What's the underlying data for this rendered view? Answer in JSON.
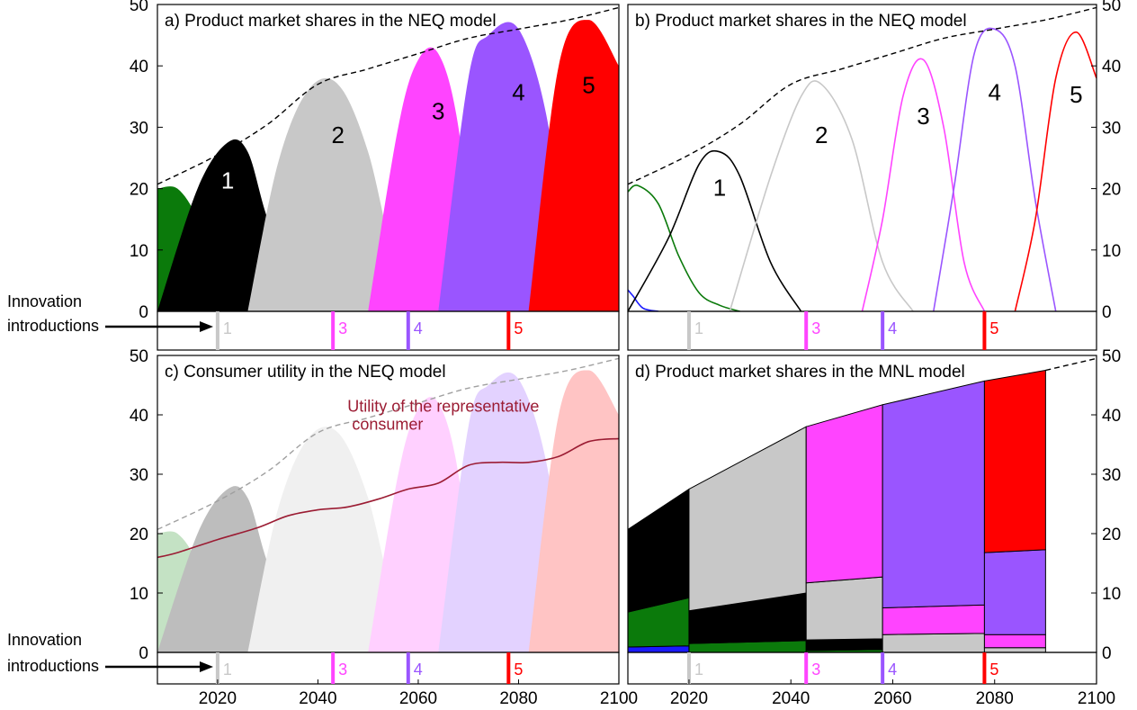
{
  "figure": {
    "innovation_label_line1": "Innovation",
    "innovation_label_line2": "introductions",
    "colors": {
      "blue": "#1a1aff",
      "green": "#0b7a0b",
      "black": "#000000",
      "grey": "#c8c8c8",
      "magenta": "#ff44ff",
      "purple": "#9a55ff",
      "red": "#ff0000",
      "utility": "#9b1c33"
    }
  },
  "chart_data": [
    {
      "panel": "a",
      "type": "area",
      "title": "a) Product market shares in the NEQ model",
      "x_range": [
        2008,
        2100
      ],
      "y_range": [
        0,
        50
      ],
      "y_ticks": [
        "0",
        "10",
        "20",
        "30",
        "40",
        "50"
      ],
      "x_ticks": [],
      "total_line": {
        "style": "dashed",
        "x": [
          2008,
          2020,
          2030,
          2040,
          2050,
          2060,
          2070,
          2080,
          2090,
          2100
        ],
        "y": [
          20.7,
          25.5,
          30.5,
          37.0,
          39.5,
          42.0,
          44.5,
          46.0,
          47.5,
          49.5
        ]
      },
      "series": [
        {
          "label": "",
          "color": "blue",
          "x": [
            2008,
            2010,
            2014
          ],
          "y": [
            3.5,
            1.0,
            0.0
          ]
        },
        {
          "label": "",
          "color": "green",
          "x": [
            2008,
            2012,
            2016,
            2020,
            2024,
            2028
          ],
          "y": [
            20.0,
            20.0,
            15.0,
            5.0,
            1.0,
            0.0
          ]
        },
        {
          "label": "1",
          "color": "black",
          "x": [
            2008,
            2016,
            2022,
            2026,
            2030,
            2036,
            2040
          ],
          "y": [
            0.0,
            20.0,
            27.5,
            26.0,
            15.0,
            3.0,
            0.0
          ]
        },
        {
          "label": "2",
          "color": "grey",
          "x": [
            2026,
            2032,
            2038,
            2044,
            2050,
            2056,
            2062
          ],
          "y": [
            0.0,
            24.0,
            36.0,
            37.0,
            26.0,
            6.0,
            0.0
          ]
        },
        {
          "label": "3",
          "color": "magenta",
          "x": [
            2050,
            2056,
            2060,
            2064,
            2068,
            2072
          ],
          "y": [
            0.0,
            30.0,
            41.0,
            42.0,
            30.0,
            0.0
          ]
        },
        {
          "label": "4",
          "color": "purple",
          "x": [
            2064,
            2070,
            2074,
            2080,
            2086,
            2090
          ],
          "y": [
            0.0,
            38.0,
            45.0,
            46.0,
            30.0,
            0.0
          ]
        },
        {
          "label": "5",
          "color": "red",
          "x": [
            2082,
            2088,
            2094,
            2100
          ],
          "y": [
            0.0,
            40.0,
            47.5,
            40.0
          ]
        }
      ],
      "innovations": [
        {
          "label": "1",
          "x": 2020,
          "color": "grey"
        },
        {
          "label": "3",
          "x": 2043,
          "color": "magenta"
        },
        {
          "label": "4",
          "x": 2058,
          "color": "purple"
        },
        {
          "label": "5",
          "x": 2078,
          "color": "red"
        }
      ]
    },
    {
      "panel": "b",
      "type": "line",
      "title": "b) Product market shares in the NEQ model",
      "x_range": [
        2008,
        2100
      ],
      "y_range": [
        0,
        50
      ],
      "y_ticks": [
        "0",
        "10",
        "20",
        "30",
        "40",
        "50"
      ],
      "x_ticks": [],
      "total_line": {
        "style": "dashed",
        "x": [
          2008,
          2020,
          2030,
          2040,
          2050,
          2060,
          2070,
          2080,
          2090,
          2100
        ],
        "y": [
          20.7,
          25.5,
          30.5,
          37.0,
          39.5,
          42.0,
          44.5,
          46.0,
          47.5,
          49.5
        ]
      },
      "series": [
        {
          "label": "",
          "color": "blue",
          "x": [
            2008,
            2009,
            2011,
            2014
          ],
          "y": [
            3.5,
            2.5,
            0.5,
            0.0
          ]
        },
        {
          "label": "",
          "color": "green",
          "x": [
            2008,
            2010,
            2014,
            2018,
            2022,
            2026,
            2030
          ],
          "y": [
            19.5,
            20.5,
            17.5,
            9.0,
            3.0,
            1.0,
            0.0
          ]
        },
        {
          "label": "1",
          "color": "black",
          "x": [
            2008,
            2016,
            2022,
            2026,
            2030,
            2036,
            2042
          ],
          "y": [
            0.0,
            12.0,
            24.0,
            26.0,
            22.0,
            8.0,
            0.0
          ]
        },
        {
          "label": "2",
          "color": "grey",
          "x": [
            2028,
            2036,
            2042,
            2046,
            2052,
            2058,
            2064
          ],
          "y": [
            0.0,
            22.0,
            35.0,
            37.0,
            28.0,
            8.0,
            0.0
          ]
        },
        {
          "label": "3",
          "color": "magenta",
          "x": [
            2054,
            2058,
            2062,
            2066,
            2070,
            2074,
            2078
          ],
          "y": [
            0.0,
            15.0,
            35.0,
            41.0,
            30.0,
            8.0,
            0.0
          ]
        },
        {
          "label": "4",
          "color": "purple",
          "x": [
            2068,
            2072,
            2076,
            2080,
            2084,
            2088,
            2092
          ],
          "y": [
            0.0,
            20.0,
            42.0,
            46.0,
            40.0,
            18.0,
            0.0
          ]
        },
        {
          "label": "5",
          "color": "red",
          "x": [
            2084,
            2088,
            2092,
            2096,
            2100
          ],
          "y": [
            0.0,
            15.0,
            38.0,
            45.5,
            38.0
          ]
        }
      ],
      "innovations": [
        {
          "label": "1",
          "x": 2020,
          "color": "grey"
        },
        {
          "label": "3",
          "x": 2043,
          "color": "magenta"
        },
        {
          "label": "4",
          "x": 2058,
          "color": "purple"
        },
        {
          "label": "5",
          "x": 2078,
          "color": "red"
        }
      ]
    },
    {
      "panel": "c",
      "type": "area",
      "title": "c)  Consumer utility in the NEQ model",
      "x_range": [
        2008,
        2100
      ],
      "y_range": [
        0,
        50
      ],
      "y_ticks": [
        "0",
        "10",
        "20",
        "30",
        "40",
        "50"
      ],
      "x_ticks": [
        "2020",
        "2040",
        "2060",
        "2080",
        "2100"
      ],
      "annotation": {
        "line1": "Utility of the representative",
        "line2": "consumer",
        "x": 2065,
        "y": 40.5
      },
      "utility_line": {
        "x": [
          2008,
          2012,
          2020,
          2028,
          2034,
          2040,
          2046,
          2052,
          2058,
          2064,
          2070,
          2076,
          2082,
          2088,
          2094,
          2100
        ],
        "y": [
          16.0,
          16.8,
          19.0,
          21.0,
          23.0,
          24.0,
          24.5,
          25.8,
          27.5,
          28.5,
          31.5,
          32.0,
          32.0,
          33.0,
          35.5,
          36.0
        ]
      },
      "total_line": {
        "style": "dashed",
        "x": [
          2008,
          2020,
          2030,
          2040,
          2050,
          2060,
          2070,
          2080,
          2090,
          2100
        ],
        "y": [
          20.7,
          25.5,
          30.5,
          37.0,
          39.5,
          42.0,
          44.5,
          46.0,
          47.5,
          49.5
        ]
      },
      "series": [
        {
          "label": "",
          "color": "#f4c8c8",
          "x": [
            2008,
            2010,
            2014
          ],
          "y": [
            3.5,
            1.0,
            0.0
          ]
        },
        {
          "label": "",
          "color": "#c4e2c4",
          "x": [
            2008,
            2012,
            2016,
            2020,
            2024,
            2028
          ],
          "y": [
            20.0,
            20.0,
            15.0,
            5.0,
            1.0,
            0.0
          ]
        },
        {
          "label": "",
          "color": "#bdbdbd",
          "x": [
            2008,
            2016,
            2022,
            2026,
            2030,
            2036,
            2040
          ],
          "y": [
            0.0,
            20.0,
            27.5,
            26.0,
            15.0,
            3.0,
            0.0
          ]
        },
        {
          "label": "",
          "color": "#f0f0f0",
          "x": [
            2026,
            2032,
            2038,
            2044,
            2050,
            2056,
            2062
          ],
          "y": [
            0.0,
            24.0,
            36.0,
            37.0,
            26.0,
            6.0,
            0.0
          ]
        },
        {
          "label": "",
          "color": "#ffd0ff",
          "x": [
            2050,
            2056,
            2060,
            2064,
            2068,
            2072
          ],
          "y": [
            0.0,
            30.0,
            41.0,
            42.0,
            30.0,
            0.0
          ]
        },
        {
          "label": "",
          "color": "#e3d2ff",
          "x": [
            2064,
            2070,
            2074,
            2080,
            2086,
            2090
          ],
          "y": [
            0.0,
            38.0,
            45.0,
            46.0,
            30.0,
            0.0
          ]
        },
        {
          "label": "",
          "color": "#ffc4c4",
          "x": [
            2082,
            2088,
            2094,
            2100
          ],
          "y": [
            0.0,
            40.0,
            47.5,
            40.0
          ]
        }
      ],
      "innovations": [
        {
          "label": "1",
          "x": 2020,
          "color": "grey"
        },
        {
          "label": "3",
          "x": 2043,
          "color": "magenta"
        },
        {
          "label": "4",
          "x": 2058,
          "color": "purple"
        },
        {
          "label": "5",
          "x": 2078,
          "color": "red"
        }
      ]
    },
    {
      "panel": "d",
      "type": "bar",
      "title": "d)  Product market shares in the MNL model",
      "x_range": [
        2008,
        2100
      ],
      "y_range": [
        0,
        50
      ],
      "y_ticks": [
        "0",
        "10",
        "20",
        "30",
        "40",
        "50"
      ],
      "x_ticks": [
        "2020",
        "2040",
        "2060",
        "2080",
        "2100"
      ],
      "total_line": {
        "style": "dashed",
        "x": [
          2090,
          2100
        ],
        "y": [
          47.5,
          49.5
        ]
      },
      "blocks": [
        {
          "x0": 2008,
          "x1": 2020,
          "stack": [
            {
              "color": "blue",
              "y0": [
                0.0,
                0.0
              ],
              "y1": [
                0.9,
                1.1
              ]
            },
            {
              "color": "green",
              "y0": [
                0.9,
                1.1
              ],
              "y1": [
                6.8,
                9.2
              ]
            },
            {
              "color": "black",
              "y0": [
                6.8,
                9.2
              ],
              "y1": [
                20.7,
                27.5
              ]
            }
          ]
        },
        {
          "x0": 2020,
          "x1": 2043,
          "stack": [
            {
              "color": "green",
              "y0": [
                0.0,
                0.0
              ],
              "y1": [
                1.5,
                2.0
              ]
            },
            {
              "color": "black",
              "y0": [
                1.5,
                2.0
              ],
              "y1": [
                7.0,
                10.0
              ]
            },
            {
              "color": "grey",
              "y0": [
                7.0,
                10.0
              ],
              "y1": [
                27.5,
                38.0
              ]
            }
          ]
        },
        {
          "x0": 2043,
          "x1": 2058,
          "stack": [
            {
              "color": "green",
              "y0": [
                0.0,
                0.0
              ],
              "y1": [
                0.3,
                0.5
              ]
            },
            {
              "color": "black",
              "y0": [
                0.3,
                0.5
              ],
              "y1": [
                2.1,
                2.3
              ]
            },
            {
              "color": "grey",
              "y0": [
                2.1,
                2.3
              ],
              "y1": [
                11.7,
                12.7
              ]
            },
            {
              "color": "magenta",
              "y0": [
                11.7,
                12.7
              ],
              "y1": [
                38.0,
                41.7
              ]
            }
          ]
        },
        {
          "x0": 2058,
          "x1": 2078,
          "stack": [
            {
              "color": "grey",
              "y0": [
                0.0,
                0.0
              ],
              "y1": [
                3.0,
                3.2
              ]
            },
            {
              "color": "magenta",
              "y0": [
                3.0,
                3.2
              ],
              "y1": [
                7.5,
                8.0
              ]
            },
            {
              "color": "purple",
              "y0": [
                7.5,
                8.0
              ],
              "y1": [
                41.7,
                45.7
              ]
            }
          ]
        },
        {
          "x0": 2078,
          "x1": 2090,
          "stack": [
            {
              "color": "grey",
              "y0": [
                0.0,
                0.0
              ],
              "y1": [
                0.8,
                0.8
              ]
            },
            {
              "color": "magenta",
              "y0": [
                0.8,
                0.8
              ],
              "y1": [
                3.0,
                3.0
              ]
            },
            {
              "color": "purple",
              "y0": [
                3.0,
                3.0
              ],
              "y1": [
                16.8,
                17.3
              ]
            },
            {
              "color": "red",
              "y0": [
                16.8,
                17.3
              ],
              "y1": [
                45.7,
                47.5
              ]
            }
          ]
        }
      ],
      "innovations": [
        {
          "label": "1",
          "x": 2020,
          "color": "grey"
        },
        {
          "label": "3",
          "x": 2043,
          "color": "magenta"
        },
        {
          "label": "4",
          "x": 2058,
          "color": "purple"
        },
        {
          "label": "5",
          "x": 2078,
          "color": "red"
        }
      ]
    }
  ]
}
